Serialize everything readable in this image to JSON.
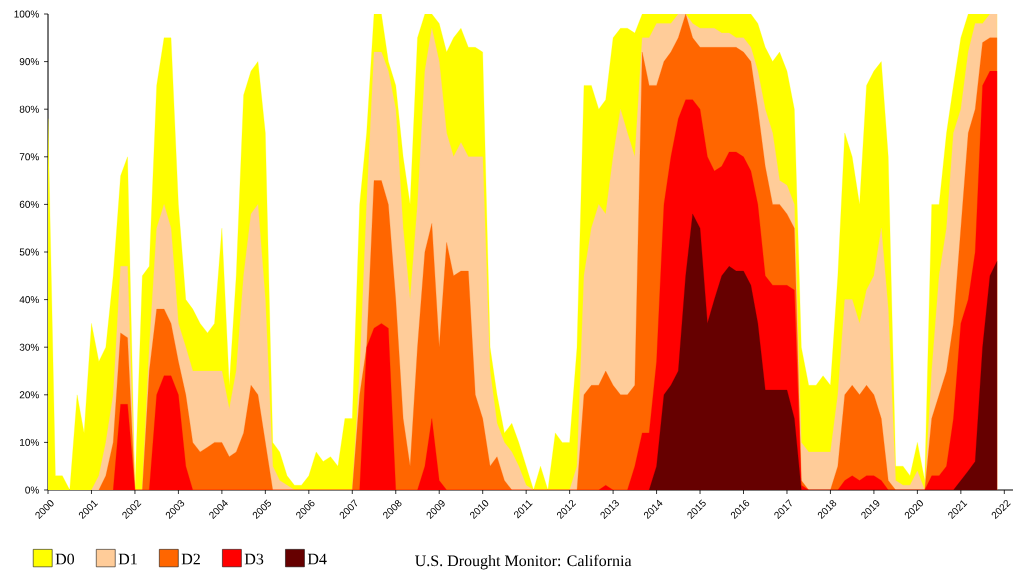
{
  "chart_data": {
    "type": "area",
    "title": "U.S. Drought Monitor: California",
    "legend": "bottom",
    "xlim": [
      2000,
      2022.2
    ],
    "xticks": [
      2000,
      2001,
      2002,
      2003,
      2004,
      2005,
      2006,
      2007,
      2008,
      2009,
      2010,
      2011,
      2012,
      2013,
      2014,
      2015,
      2016,
      2017,
      2018,
      2019,
      2020,
      2021,
      2022
    ],
    "ylim": [
      0,
      100
    ],
    "yticks": [
      {
        "value": 0,
        "label": "0%"
      },
      {
        "value": 10,
        "label": "10%"
      },
      {
        "value": 20,
        "label": "20%"
      },
      {
        "value": 30,
        "label": "30%"
      },
      {
        "value": 40,
        "label": "40%"
      },
      {
        "value": 50,
        "label": "50%"
      },
      {
        "value": 60,
        "label": "60%"
      },
      {
        "value": 70,
        "label": "70%"
      },
      {
        "value": 80,
        "label": "80%"
      },
      {
        "value": 90,
        "label": "90%"
      },
      {
        "value": 100,
        "label": "100%"
      }
    ],
    "x": [
      2000,
      2000.17,
      2000.33,
      2000.5,
      2000.67,
      2000.83,
      2001,
      2001.17,
      2001.33,
      2001.5,
      2001.67,
      2001.83,
      2002,
      2002.17,
      2002.33,
      2002.5,
      2002.67,
      2002.83,
      2003,
      2003.17,
      2003.33,
      2003.5,
      2003.67,
      2003.83,
      2004,
      2004.17,
      2004.33,
      2004.5,
      2004.67,
      2004.83,
      2005,
      2005.17,
      2005.33,
      2005.5,
      2005.67,
      2005.83,
      2006,
      2006.17,
      2006.33,
      2006.5,
      2006.67,
      2006.83,
      2007,
      2007.17,
      2007.33,
      2007.5,
      2007.67,
      2007.83,
      2008,
      2008.17,
      2008.33,
      2008.5,
      2008.67,
      2008.83,
      2009,
      2009.17,
      2009.33,
      2009.5,
      2009.67,
      2009.83,
      2010,
      2010.17,
      2010.33,
      2010.5,
      2010.67,
      2010.83,
      2011,
      2011.17,
      2011.33,
      2011.5,
      2011.67,
      2011.83,
      2012,
      2012.17,
      2012.33,
      2012.5,
      2012.67,
      2012.83,
      2013,
      2013.17,
      2013.33,
      2013.5,
      2013.67,
      2013.83,
      2014,
      2014.17,
      2014.33,
      2014.5,
      2014.67,
      2014.83,
      2015,
      2015.17,
      2015.33,
      2015.5,
      2015.67,
      2015.83,
      2016,
      2016.17,
      2016.33,
      2016.5,
      2016.67,
      2016.83,
      2017,
      2017.17,
      2017.33,
      2017.5,
      2017.67,
      2017.83,
      2018,
      2018.17,
      2018.33,
      2018.5,
      2018.67,
      2018.83,
      2019,
      2019.17,
      2019.33,
      2019.5,
      2019.67,
      2019.83,
      2020,
      2020.17,
      2020.33,
      2020.5,
      2020.67,
      2020.83,
      2021,
      2021.17,
      2021.33,
      2021.5,
      2021.67,
      2021.83
    ],
    "series": [
      {
        "name": "D0",
        "color": "#ffff00",
        "values": [
          78,
          3,
          3,
          0,
          20,
          12,
          35,
          27,
          30,
          45,
          66,
          70,
          0,
          45,
          47,
          85,
          95,
          95,
          60,
          40,
          38,
          35,
          33,
          35,
          55,
          22,
          45,
          83,
          88,
          90,
          75,
          10,
          8,
          3,
          1,
          1,
          3,
          8,
          6,
          7,
          5,
          15,
          15,
          60,
          75,
          100,
          100,
          90,
          85,
          70,
          60,
          95,
          100,
          100,
          98,
          92,
          95,
          97,
          93,
          93,
          92,
          30,
          20,
          12,
          14,
          10,
          5,
          0,
          5,
          0,
          12,
          10,
          10,
          30,
          85,
          85,
          80,
          82,
          95,
          97,
          97,
          96,
          100,
          100,
          100,
          100,
          100,
          100,
          100,
          100,
          100,
          100,
          100,
          100,
          100,
          100,
          100,
          100,
          98,
          93,
          90,
          92,
          88,
          80,
          30,
          22,
          22,
          24,
          22,
          45,
          75,
          70,
          60,
          85,
          88,
          90,
          70,
          5,
          5,
          3,
          10,
          2,
          60,
          60,
          75,
          85,
          95,
          100,
          100,
          100,
          100,
          100
        ]
      },
      {
        "name": "D1",
        "color": "#ffcc99",
        "x": [
          2001,
          2001.17,
          2001.33,
          2001.5,
          2001.67,
          2001.83,
          2002,
          2002.17,
          2002.33,
          2002.5,
          2002.67,
          2002.83,
          2003,
          2003.17,
          2003.33,
          2003.5,
          2003.67,
          2003.83,
          2004,
          2004.17,
          2004.33,
          2004.5,
          2004.67,
          2004.83,
          2005,
          2005.17,
          2005.33,
          2005.5,
          2005.67,
          2005.83,
          2006,
          2006.17,
          2006.33,
          2006.5,
          2006.67,
          2006.83,
          2007,
          2007.17,
          2007.33,
          2007.5,
          2007.67,
          2007.83,
          2008,
          2008.17,
          2008.33,
          2008.5,
          2008.67,
          2008.83,
          2009,
          2009.17,
          2009.33,
          2009.5,
          2009.67,
          2009.83,
          2010,
          2010.17,
          2010.33,
          2010.5,
          2010.67,
          2010.83,
          2011,
          2011.17,
          2011.33,
          2011.5,
          2011.67,
          2011.83,
          2012,
          2012.17,
          2012.33,
          2012.5,
          2012.67,
          2012.83,
          2013,
          2013.17,
          2013.33,
          2013.5,
          2013.67,
          2013.83,
          2014,
          2014.17,
          2014.33,
          2014.5,
          2014.67,
          2014.83,
          2015,
          2015.17,
          2015.33,
          2015.5,
          2015.67,
          2015.83,
          2016,
          2016.17,
          2016.33,
          2016.5,
          2016.67,
          2016.83,
          2017,
          2017.17,
          2017.33,
          2017.5,
          2017.67,
          2017.83,
          2018,
          2018.17,
          2018.33,
          2018.5,
          2018.67,
          2018.83,
          2019,
          2019.17,
          2019.33,
          2019.5,
          2019.67,
          2019.83,
          2020,
          2020.17,
          2020.33,
          2020.5,
          2020.67,
          2020.83,
          2021,
          2021.17,
          2021.33,
          2021.5,
          2021.67,
          2021.83
        ],
        "values": [
          0,
          3,
          10,
          20,
          47,
          47,
          0,
          0,
          30,
          55,
          60,
          55,
          35,
          30,
          25,
          25,
          25,
          25,
          25,
          17,
          25,
          45,
          58,
          60,
          40,
          5,
          2,
          1,
          0,
          0,
          0,
          0,
          0,
          0,
          0,
          0,
          0,
          25,
          60,
          92,
          92,
          88,
          80,
          55,
          40,
          60,
          88,
          97,
          90,
          75,
          70,
          73,
          70,
          70,
          70,
          25,
          14,
          10,
          8,
          5,
          1,
          0,
          0,
          0,
          0,
          0,
          0,
          5,
          45,
          55,
          60,
          58,
          70,
          80,
          75,
          70,
          95,
          95,
          98,
          98,
          98,
          100,
          100,
          98,
          97,
          97,
          97,
          96,
          96,
          95,
          95,
          93,
          88,
          80,
          75,
          65,
          64,
          60,
          10,
          8,
          8,
          8,
          8,
          20,
          40,
          40,
          35,
          42,
          45,
          55,
          38,
          2,
          1,
          1,
          4,
          0,
          25,
          45,
          55,
          75,
          80,
          92,
          98,
          98,
          100,
          100
        ]
      },
      {
        "name": "D2",
        "color": "#ff6600",
        "x": [
          2001.17,
          2001.33,
          2001.5,
          2001.67,
          2001.83,
          2002,
          2002.17,
          2002.33,
          2002.5,
          2002.67,
          2002.83,
          2003,
          2003.17,
          2003.33,
          2003.5,
          2003.67,
          2003.83,
          2004,
          2004.17,
          2004.33,
          2004.5,
          2004.67,
          2004.83,
          2005,
          2005.17,
          2005.33,
          2005.5,
          2005.67,
          2005.83,
          2006,
          2006.17,
          2006.33,
          2006.5,
          2006.67,
          2006.83,
          2007,
          2007.17,
          2007.33,
          2007.5,
          2007.67,
          2007.83,
          2008,
          2008.17,
          2008.33,
          2008.5,
          2008.67,
          2008.83,
          2009,
          2009.17,
          2009.33,
          2009.5,
          2009.67,
          2009.83,
          2010,
          2010.17,
          2010.33,
          2010.5,
          2010.67,
          2010.83,
          2011,
          2011.17,
          2011.33,
          2011.5,
          2011.67,
          2011.83,
          2012,
          2012.17,
          2012.33,
          2012.5,
          2012.67,
          2012.83,
          2013,
          2013.17,
          2013.33,
          2013.5,
          2013.67,
          2013.83,
          2014,
          2014.17,
          2014.33,
          2014.5,
          2014.67,
          2014.83,
          2015,
          2015.17,
          2015.33,
          2015.5,
          2015.67,
          2015.83,
          2016,
          2016.17,
          2016.33,
          2016.5,
          2016.67,
          2016.83,
          2017,
          2017.17,
          2017.33,
          2017.5,
          2017.67,
          2017.83,
          2018,
          2018.17,
          2018.33,
          2018.5,
          2018.67,
          2018.83,
          2019,
          2019.17,
          2019.33,
          2019.5,
          2019.67,
          2019.83,
          2020,
          2020.17,
          2020.33,
          2020.5,
          2020.67,
          2020.83,
          2021,
          2021.17,
          2021.33,
          2021.5,
          2021.67,
          2021.83
        ],
        "values": [
          0,
          3,
          10,
          33,
          32,
          0,
          0,
          25,
          38,
          38,
          35,
          27,
          20,
          10,
          8,
          9,
          10,
          10,
          7,
          8,
          12,
          22,
          20,
          10,
          0,
          0,
          0,
          0,
          0,
          0,
          0,
          0,
          0,
          0,
          0,
          0,
          20,
          30,
          65,
          65,
          60,
          40,
          15,
          5,
          30,
          50,
          56,
          30,
          52,
          45,
          46,
          46,
          20,
          15,
          5,
          7,
          2,
          0,
          0,
          0,
          0,
          0,
          0,
          0,
          0,
          0,
          0,
          20,
          22,
          22,
          25,
          22,
          20,
          20,
          22,
          92,
          85,
          85,
          90,
          92,
          95,
          100,
          95,
          93,
          93,
          93,
          93,
          93,
          93,
          92,
          90,
          80,
          68,
          60,
          60,
          58,
          55,
          2,
          0,
          0,
          0,
          0,
          5,
          20,
          22,
          20,
          22,
          20,
          15,
          2,
          0,
          0,
          0,
          0,
          0,
          15,
          20,
          25,
          35,
          55,
          75,
          80,
          94,
          95,
          95
        ]
      },
      {
        "name": "D3",
        "color": "#ff0000",
        "x": [
          2001.5,
          2001.67,
          2001.83,
          2002,
          2002.17,
          2002.33,
          2002.5,
          2002.67,
          2002.83,
          2003,
          2003.17,
          2003.33,
          2003.5,
          2003.67,
          2003.83,
          2004,
          2004.17,
          2004.33,
          2004.5,
          2004.67,
          2004.83,
          2005,
          2005.17,
          2005.33,
          2005.5,
          2005.67,
          2005.83,
          2006,
          2006.17,
          2006.33,
          2006.5,
          2006.67,
          2006.83,
          2007,
          2007.17,
          2007.33,
          2007.5,
          2007.67,
          2007.83,
          2008,
          2008.17,
          2008.33,
          2008.5,
          2008.67,
          2008.83,
          2009,
          2009.17,
          2009.33,
          2009.5,
          2009.67,
          2009.83,
          2010,
          2010.17,
          2010.33,
          2010.5,
          2010.67,
          2010.83,
          2011,
          2011.17,
          2011.33,
          2011.5,
          2011.67,
          2011.83,
          2012,
          2012.17,
          2012.33,
          2012.5,
          2012.67,
          2012.83,
          2013,
          2013.17,
          2013.33,
          2013.5,
          2013.67,
          2013.83,
          2014,
          2014.17,
          2014.33,
          2014.5,
          2014.67,
          2014.83,
          2015,
          2015.17,
          2015.33,
          2015.5,
          2015.67,
          2015.83,
          2016,
          2016.17,
          2016.33,
          2016.5,
          2016.67,
          2016.83,
          2017,
          2017.17,
          2017.33,
          2017.5,
          2017.67,
          2017.83,
          2018,
          2018.17,
          2018.33,
          2018.5,
          2018.67,
          2018.83,
          2019,
          2019.17,
          2019.33,
          2019.5,
          2019.67,
          2019.83,
          2020,
          2020.17,
          2020.33,
          2020.5,
          2020.67,
          2020.83,
          2021,
          2021.17,
          2021.33,
          2021.5,
          2021.67,
          2021.83
        ],
        "values": [
          0,
          18,
          18,
          0,
          0,
          0,
          20,
          24,
          24,
          20,
          5,
          0,
          0,
          0,
          0,
          0,
          0,
          0,
          0,
          0,
          0,
          0,
          0,
          0,
          0,
          0,
          0,
          0,
          0,
          0,
          0,
          0,
          0,
          0,
          0,
          30,
          34,
          35,
          34,
          0,
          0,
          0,
          0,
          5,
          15,
          2,
          0,
          0,
          0,
          0,
          0,
          0,
          0,
          0,
          0,
          0,
          0,
          0,
          0,
          0,
          0,
          0,
          0,
          0,
          0,
          0,
          0,
          0,
          1,
          0,
          0,
          0,
          5,
          12,
          12,
          27,
          60,
          70,
          78,
          82,
          82,
          80,
          70,
          67,
          68,
          71,
          71,
          70,
          67,
          60,
          45,
          43,
          43,
          43,
          42,
          1,
          0,
          0,
          0,
          0,
          0,
          2,
          3,
          2,
          3,
          3,
          2,
          0,
          0,
          0,
          0,
          0,
          0,
          3,
          3,
          5,
          15,
          35,
          40,
          50,
          85,
          88,
          88
        ]
      },
      {
        "name": "D4",
        "color": "#660000",
        "x": [
          2013.83,
          2014,
          2014.17,
          2014.33,
          2014.5,
          2014.67,
          2014.83,
          2015,
          2015.17,
          2015.33,
          2015.5,
          2015.67,
          2015.83,
          2016,
          2016.17,
          2016.33,
          2016.5,
          2016.67,
          2016.83,
          2017,
          2017.17,
          2017.33,
          2017.5,
          2017.67,
          2017.83,
          2018,
          2018.17,
          2018.33,
          2018.5,
          2018.67,
          2018.83,
          2019,
          2019.17,
          2019.33,
          2019.5,
          2019.67,
          2019.83,
          2020,
          2020.17,
          2020.33,
          2020.5,
          2020.67,
          2020.83,
          2021,
          2021.17,
          2021.33,
          2021.5,
          2021.67,
          2021.83
        ],
        "values": [
          0,
          5,
          20,
          22,
          25,
          45,
          58,
          55,
          35,
          40,
          45,
          47,
          46,
          46,
          43,
          35,
          21,
          21,
          21,
          21,
          15,
          0,
          0,
          0,
          0,
          0,
          0,
          0,
          0,
          0,
          0,
          0,
          0,
          0,
          0,
          0,
          0,
          0,
          0,
          0,
          0,
          0,
          0,
          2,
          4,
          6,
          30,
          45,
          48
        ]
      }
    ]
  }
}
